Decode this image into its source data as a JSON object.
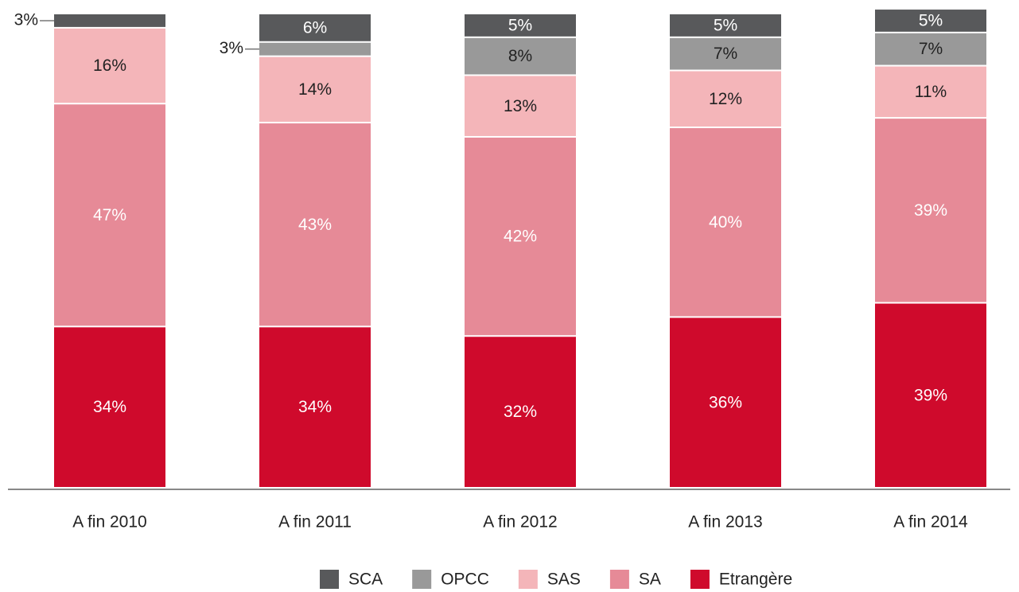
{
  "chart_data": {
    "type": "stacked_bar",
    "categories": [
      "A fin 2010",
      "A fin 2011",
      "A fin 2012",
      "A fin 2013",
      "A fin 2014"
    ],
    "series": [
      {
        "name": "Etrangère",
        "color": "#cf0a2c",
        "values": [
          34,
          34,
          32,
          36,
          39
        ],
        "value_labels": [
          "34%",
          "34%",
          "32%",
          "36%",
          "39%"
        ]
      },
      {
        "name": "SA",
        "color": "#e68a97",
        "values": [
          47,
          43,
          42,
          40,
          39
        ],
        "value_labels": [
          "47%",
          "43%",
          "42%",
          "40%",
          "39%"
        ]
      },
      {
        "name": "SAS",
        "color": "#f4b5b9",
        "values": [
          16,
          14,
          13,
          12,
          11
        ],
        "value_labels": [
          "16%",
          "14%",
          "13%",
          "12%",
          "11%"
        ]
      },
      {
        "name": "OPCC",
        "color": "#999999",
        "values": [
          null,
          3,
          8,
          7,
          7
        ],
        "value_labels": [
          null,
          "3%",
          "8%",
          "7%",
          "7%"
        ]
      },
      {
        "name": "SCA",
        "color": "#58595b",
        "values": [
          3,
          6,
          5,
          5,
          5
        ],
        "value_labels": [
          "3%",
          "6%",
          "5%",
          "5%",
          "5%"
        ]
      }
    ]
  }
}
